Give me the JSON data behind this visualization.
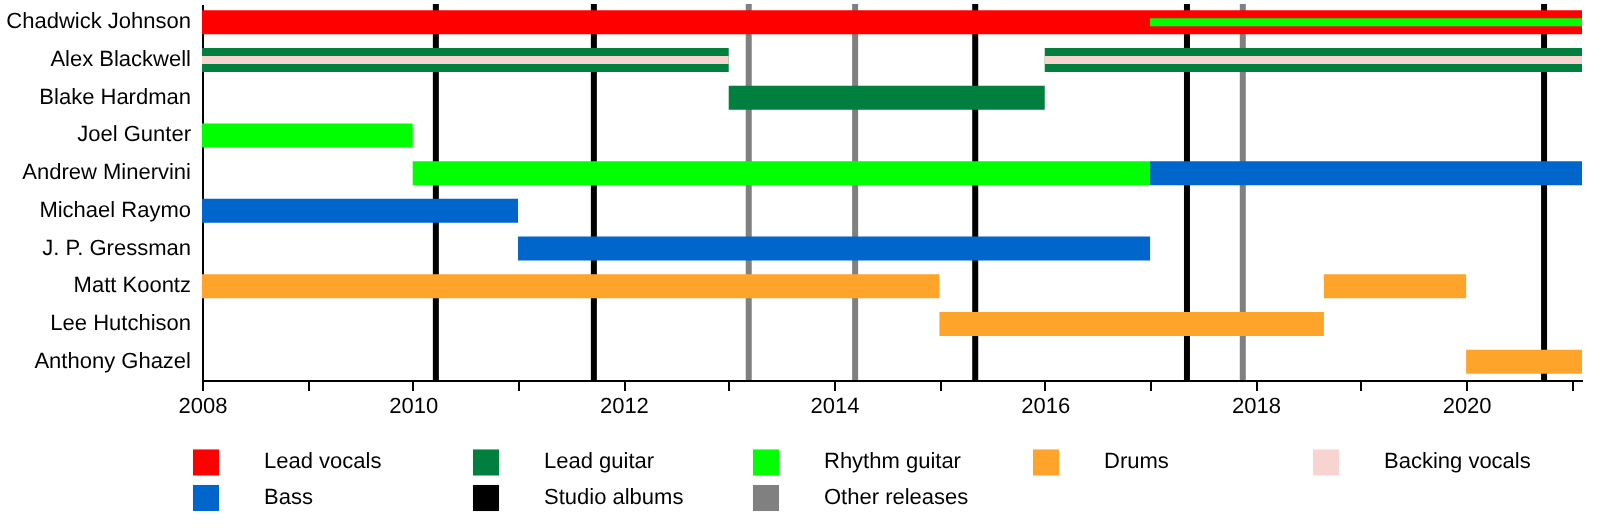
{
  "chart_data": {
    "type": "bar",
    "orientation": "horizontal",
    "categories": [
      "Chadwick Johnson",
      "Alex Blackwell",
      "Blake Hardman",
      "Joel Gunter",
      "Andrew Minervini",
      "Michael Raymo",
      "J. P. Gressman",
      "Matt Koontz",
      "Lee Hutchison",
      "Anthony Ghazel"
    ],
    "series": [
      {
        "name": "Lead vocals",
        "color": "#ff0000",
        "values": [
          13.1,
          null,
          null,
          null,
          null,
          null,
          null,
          null,
          null,
          null
        ],
        "base": [
          2008,
          null,
          null,
          null,
          null,
          null,
          null,
          null,
          null,
          null
        ]
      },
      {
        "name": "Lead guitar",
        "color": "#007f3f",
        "values": [
          null,
          5,
          3,
          null,
          null,
          null,
          null,
          null,
          null,
          null
        ],
        "base": [
          null,
          2008,
          2013,
          null,
          null,
          null,
          null,
          null,
          null,
          null
        ]
      },
      {
        "color": "#007f3f",
        "values": [
          null,
          5.1,
          null,
          null,
          null,
          null,
          null,
          null,
          null,
          null
        ],
        "base": [
          null,
          2016,
          null,
          null,
          null,
          null,
          null,
          null,
          null,
          null
        ]
      },
      {
        "name": "Rhythm guitar",
        "color": "#00ff00",
        "values": [
          4.1,
          null,
          null,
          2,
          7,
          null,
          null,
          null,
          null,
          null
        ],
        "base": [
          2017,
          null,
          null,
          2008,
          2010,
          null,
          null,
          null,
          null,
          null
        ]
      },
      {
        "name": "Drums",
        "color": "#ffa42a",
        "values": [
          null,
          null,
          null,
          null,
          null,
          null,
          null,
          7,
          3.65,
          1.1
        ],
        "base": [
          null,
          null,
          null,
          null,
          null,
          null,
          null,
          2008,
          2015,
          2020
        ]
      },
      {
        "color": "#ffa42a",
        "values": [
          null,
          null,
          null,
          null,
          null,
          null,
          null,
          1.35,
          null,
          null
        ],
        "base": [
          null,
          null,
          null,
          null,
          null,
          null,
          null,
          2018.65,
          null,
          null
        ]
      },
      {
        "name": "Backing vocals",
        "color": "#f8d4d0",
        "values": [
          null,
          5,
          null,
          null,
          null,
          null,
          null,
          null,
          null,
          null
        ],
        "base": [
          null,
          2008,
          null,
          null,
          null,
          null,
          null,
          null,
          null,
          null
        ]
      },
      {
        "color": "#f8d4d0",
        "values": [
          null,
          5.1,
          null,
          null,
          null,
          null,
          null,
          null,
          null,
          null
        ],
        "base": [
          null,
          2016,
          null,
          null,
          null,
          null,
          null,
          null,
          null,
          null
        ]
      },
      {
        "name": "Bass",
        "color": "#0066cc",
        "values": [
          null,
          null,
          null,
          null,
          4.1,
          3,
          6,
          null,
          null,
          null
        ],
        "base": [
          null,
          null,
          null,
          null,
          2017,
          2008,
          2011,
          null,
          null,
          null
        ]
      }
    ],
    "ref_lines": [
      {
        "axis": "x",
        "value": 2010.22,
        "label": "Studio albums",
        "color": "#000000"
      },
      {
        "axis": "x",
        "value": 2011.72,
        "color": "#000000"
      },
      {
        "axis": "x",
        "value": 2013.19,
        "label": "Other releases",
        "color": "#808080"
      },
      {
        "axis": "x",
        "value": 2014.2,
        "color": "#808080"
      },
      {
        "axis": "x",
        "value": 2015.34,
        "color": "#000000"
      },
      {
        "axis": "x",
        "value": 2017.35,
        "color": "#000000"
      },
      {
        "axis": "x",
        "value": 2017.88,
        "color": "#808080"
      },
      {
        "axis": "x",
        "value": 2020.74,
        "color": "#000000"
      }
    ],
    "xlim": [
      2008,
      2021.1
    ],
    "xticks": [
      2008,
      {
        "value": 2009,
        "label": null
      },
      2010,
      {
        "value": 2011,
        "label": null
      },
      2012,
      {
        "value": 2013,
        "label": null
      },
      2014,
      {
        "value": 2015,
        "label": null
      },
      2016,
      {
        "value": 2017,
        "label": null
      },
      2018,
      {
        "value": 2019,
        "label": null
      },
      2020,
      {
        "value": 2021,
        "label": null
      }
    ],
    "legend": "bottom",
    "grid": false
  }
}
